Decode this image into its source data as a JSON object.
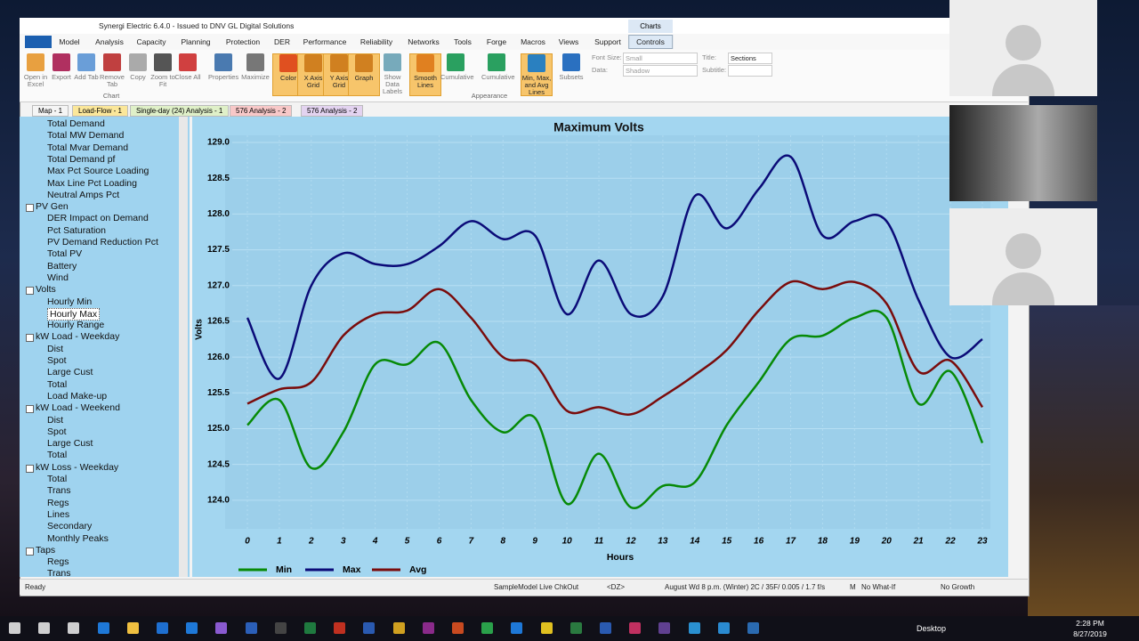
{
  "window": {
    "title": "Synergi Electric 6.4.0 - Issued to DNV GL Digital Solutions",
    "context_tab": "Charts"
  },
  "ribbon": {
    "tabs": [
      "Model",
      "Analysis",
      "Capacity",
      "Planning",
      "Protection",
      "DER",
      "Performance",
      "Reliability",
      "Networks",
      "Tools",
      "Forge",
      "Macros",
      "Views",
      "Support",
      "Controls"
    ],
    "buttons": [
      "Open in Excel",
      "Export",
      "Add Tab",
      "Remove Tab",
      "Copy",
      "Zoom to Fit",
      "Close All",
      "Properties",
      "Maximize",
      "Color",
      "X Axis Grid",
      "Y Axis Grid",
      "Graph",
      "Show Data Labels",
      "Smooth Lines",
      "Cumulative",
      "Cumulative",
      "Min, Max, and Avg Lines",
      "Subsets"
    ],
    "groups": [
      "Chart",
      "Appearance"
    ],
    "fields": [
      {
        "label": "Font Size:",
        "value": "Small"
      },
      {
        "label": "Data:",
        "value": "Shadow"
      },
      {
        "label": "Title:",
        "value": "Sections"
      },
      {
        "label": "Subtitle:",
        "value": ""
      }
    ]
  },
  "doc_tabs": [
    "Map - 1",
    "Load-Flow - 1",
    "Single-day (24) Analysis - 1",
    "576 Analysis - 2",
    "576 Analysis - 2"
  ],
  "tree": [
    {
      "label": "Total Demand",
      "level": 1
    },
    {
      "label": "Total MW Demand",
      "level": 1
    },
    {
      "label": "Total Mvar Demand",
      "level": 1
    },
    {
      "label": "Total Demand pf",
      "level": 1
    },
    {
      "label": "Max Pct Source Loading",
      "level": 1
    },
    {
      "label": "Max Line Pct Loading",
      "level": 1
    },
    {
      "label": "Neutral Amps Pct",
      "level": 1
    },
    {
      "label": "PV Gen",
      "level": 0
    },
    {
      "label": "DER Impact on Demand",
      "level": 1
    },
    {
      "label": "Pct Saturation",
      "level": 1
    },
    {
      "label": "PV Demand Reduction Pct",
      "level": 1
    },
    {
      "label": "Total PV",
      "level": 1
    },
    {
      "label": "Battery",
      "level": 1
    },
    {
      "label": "Wind",
      "level": 1
    },
    {
      "label": "Volts",
      "level": 0
    },
    {
      "label": "Hourly Min",
      "level": 1
    },
    {
      "label": "Hourly Max",
      "level": 1
    },
    {
      "label": "Hourly Range",
      "level": 1
    },
    {
      "label": "kW Load - Weekday",
      "level": 0
    },
    {
      "label": "Dist",
      "level": 1
    },
    {
      "label": "Spot",
      "level": 1
    },
    {
      "label": "Large Cust",
      "level": 1
    },
    {
      "label": "Total",
      "level": 1
    },
    {
      "label": "Load Make-up",
      "level": 1
    },
    {
      "label": "kW Load - Weekend",
      "level": 0
    },
    {
      "label": "Dist",
      "level": 1
    },
    {
      "label": "Spot",
      "level": 1
    },
    {
      "label": "Large Cust",
      "level": 1
    },
    {
      "label": "Total",
      "level": 1
    },
    {
      "label": "kW Loss - Weekday",
      "level": 0
    },
    {
      "label": "Total",
      "level": 1
    },
    {
      "label": "Trans",
      "level": 1
    },
    {
      "label": "Regs",
      "level": 1
    },
    {
      "label": "Lines",
      "level": 1
    },
    {
      "label": "Secondary",
      "level": 1
    },
    {
      "label": "Monthly Peaks",
      "level": 1
    },
    {
      "label": "Taps",
      "level": 0
    },
    {
      "label": "Regs",
      "level": 1
    },
    {
      "label": "Trans",
      "level": 1
    }
  ],
  "chart_data": {
    "type": "line",
    "title": "Maximum Volts",
    "x_label": "Hours",
    "y_label": "Volts",
    "categories": [
      "0",
      "1",
      "2",
      "3",
      "4",
      "5",
      "6",
      "7",
      "8",
      "9",
      "10",
      "11",
      "12",
      "13",
      "14",
      "15",
      "16",
      "17",
      "18",
      "19",
      "20",
      "21",
      "22",
      "23"
    ],
    "ylim": [
      123.6,
      129.1
    ],
    "yticks": [
      {
        "value": 124,
        "label": "124.0"
      },
      {
        "value": 124.5,
        "label": "124.5"
      },
      {
        "value": 125,
        "label": "125.0"
      },
      {
        "value": 125.5,
        "label": "125.5"
      },
      {
        "value": 126,
        "label": "126.0"
      },
      {
        "value": 126.5,
        "label": "126.5"
      },
      {
        "value": 127,
        "label": "127.0"
      },
      {
        "value": 127.5,
        "label": "127.5"
      },
      {
        "value": 128,
        "label": "128.0"
      },
      {
        "value": 128.5,
        "label": "128.5"
      },
      {
        "value": 129,
        "label": "129.0"
      }
    ],
    "grid": true,
    "smooth": true,
    "legend": "bottom",
    "series": [
      {
        "name": "Min",
        "color": "#078a07",
        "values": [
          125.05,
          125.4,
          124.45,
          124.95,
          125.9,
          125.9,
          126.2,
          125.4,
          124.95,
          125.15,
          123.95,
          124.65,
          123.9,
          124.2,
          124.25,
          125.05,
          125.65,
          126.25,
          126.3,
          126.55,
          126.55,
          125.35,
          125.8,
          124.8
        ]
      },
      {
        "name": "Max",
        "color": "#0b0b78",
        "values": [
          126.55,
          125.7,
          127.0,
          127.45,
          127.3,
          127.3,
          127.55,
          127.9,
          127.65,
          127.7,
          126.6,
          127.35,
          126.6,
          126.85,
          128.25,
          127.8,
          128.35,
          128.8,
          127.7,
          127.9,
          127.9,
          126.8,
          126.0,
          126.25
        ]
      },
      {
        "name": "Avg",
        "color": "#7a0c0c",
        "values": [
          125.35,
          125.55,
          125.65,
          126.3,
          126.6,
          126.65,
          126.95,
          126.55,
          126.0,
          125.9,
          125.25,
          125.3,
          125.2,
          125.45,
          125.75,
          126.1,
          126.65,
          127.05,
          126.95,
          127.05,
          126.75,
          125.8,
          125.95,
          125.3
        ]
      }
    ]
  },
  "status_bar": [
    "Ready",
    "SampleModel Live ChkOut",
    "<DZ>",
    "August Wd 8 p.m. (Winter) 2C / 35F/ 0.005 / 1.7 f/s",
    "M",
    "No What-If",
    "No Growth"
  ],
  "taskbar": {
    "desktop": "Desktop",
    "time": "2:28 PM",
    "date": "8/27/2019"
  }
}
